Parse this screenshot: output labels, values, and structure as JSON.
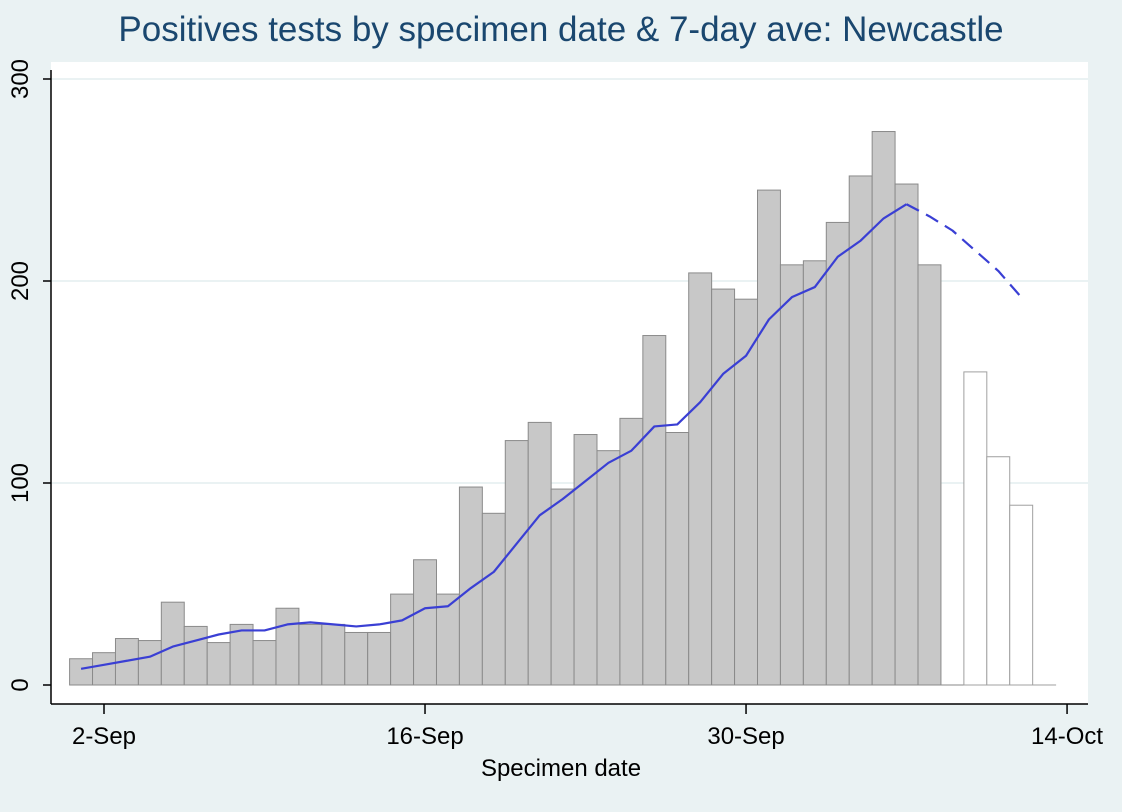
{
  "chart_data": {
    "type": "bar",
    "title": "Positives tests by specimen date & 7-day ave: Newcastle",
    "xlabel": "Specimen date",
    "ylabel": "",
    "ylim": [
      0,
      300
    ],
    "yticks": [
      0,
      100,
      200,
      300
    ],
    "xticks": [
      {
        "date": "2020-09-02",
        "label": "2-Sep"
      },
      {
        "date": "2020-09-16",
        "label": "16-Sep"
      },
      {
        "date": "2020-09-30",
        "label": "30-Sep"
      },
      {
        "date": "2020-10-14",
        "label": "14-Oct"
      }
    ],
    "grid": true,
    "colors": {
      "complete_bar": "#c8c8c8",
      "complete_bar_edge": "#8a8a8a",
      "incomplete_bar": "#ffffff",
      "incomplete_bar_edge": "#a0a0a0",
      "average_line": "#3a3fd4",
      "title": "#1a476f",
      "plot_background": "#ffffff",
      "outer_background": "#eaf2f3",
      "grid": "#eaf2f3"
    },
    "series": [
      {
        "kind": "bar",
        "status": "complete",
        "x": [
          "2020-09-01",
          "2020-09-02",
          "2020-09-03",
          "2020-09-04",
          "2020-09-05",
          "2020-09-06",
          "2020-09-07",
          "2020-09-08",
          "2020-09-09",
          "2020-09-10",
          "2020-09-11",
          "2020-09-12",
          "2020-09-13",
          "2020-09-14",
          "2020-09-15",
          "2020-09-16",
          "2020-09-17",
          "2020-09-18",
          "2020-09-19",
          "2020-09-20",
          "2020-09-21",
          "2020-09-22",
          "2020-09-23",
          "2020-09-24",
          "2020-09-25",
          "2020-09-26",
          "2020-09-27",
          "2020-09-28",
          "2020-09-29",
          "2020-09-30",
          "2020-10-01",
          "2020-10-02",
          "2020-10-03",
          "2020-10-04",
          "2020-10-05",
          "2020-10-06",
          "2020-10-07",
          "2020-10-08",
          "2020-10-09"
        ],
        "values": [
          13,
          16,
          23,
          22,
          41,
          29,
          21,
          30,
          22,
          38,
          30,
          30,
          26,
          26,
          45,
          62,
          45,
          98,
          85,
          121,
          130,
          97,
          124,
          116,
          132,
          173,
          125,
          204,
          196,
          191,
          245,
          208,
          210,
          229,
          252,
          274,
          248,
          208,
          0
        ]
      },
      {
        "kind": "bar",
        "status": "incomplete",
        "x": [
          "2020-10-10",
          "2020-10-11",
          "2020-10-12",
          "2020-10-13"
        ],
        "values": [
          155,
          113,
          89,
          0
        ]
      },
      {
        "kind": "line",
        "style": "solid",
        "x": [
          "2020-09-01",
          "2020-09-02",
          "2020-09-03",
          "2020-09-04",
          "2020-09-05",
          "2020-09-06",
          "2020-09-07",
          "2020-09-08",
          "2020-09-09",
          "2020-09-10",
          "2020-09-11",
          "2020-09-12",
          "2020-09-13",
          "2020-09-14",
          "2020-09-15",
          "2020-09-16",
          "2020-09-17",
          "2020-09-18",
          "2020-09-19",
          "2020-09-20",
          "2020-09-21",
          "2020-09-22",
          "2020-09-23",
          "2020-09-24",
          "2020-09-25",
          "2020-09-26",
          "2020-09-27",
          "2020-09-28",
          "2020-09-29",
          "2020-09-30",
          "2020-10-01",
          "2020-10-02",
          "2020-10-03",
          "2020-10-04",
          "2020-10-05",
          "2020-10-06",
          "2020-10-07"
        ],
        "values": [
          8,
          10,
          12,
          14,
          19,
          22,
          25,
          27,
          27,
          30,
          31,
          30,
          29,
          30,
          32,
          38,
          39,
          48,
          56,
          70,
          84,
          92,
          101,
          110,
          116,
          128,
          129,
          140,
          154,
          163,
          181,
          192,
          197,
          212,
          220,
          231,
          238
        ]
      },
      {
        "kind": "line",
        "style": "dashed",
        "x": [
          "2020-10-07",
          "2020-10-08",
          "2020-10-09",
          "2020-10-10",
          "2020-10-11",
          "2020-10-12"
        ],
        "values": [
          238,
          232,
          225,
          215,
          205,
          192
        ]
      }
    ]
  }
}
